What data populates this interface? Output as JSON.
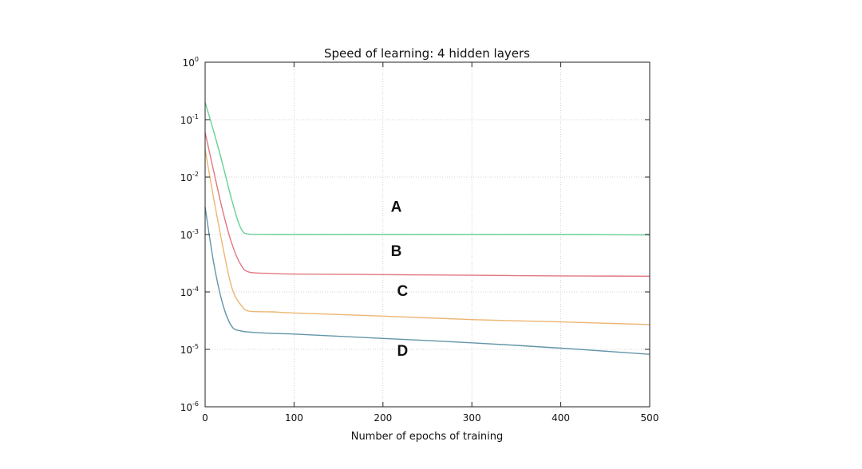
{
  "chart_data": {
    "type": "line",
    "title": "Speed of learning: 4 hidden layers",
    "xlabel": "Number of epochs of training",
    "ylabel": "",
    "xlim": [
      0,
      500
    ],
    "ylim": [
      1e-06,
      1
    ],
    "yscale": "log",
    "grid": true,
    "xticks": [
      "0",
      "100",
      "200",
      "300",
      "400",
      "500"
    ],
    "yticks": [
      {
        "base": "10",
        "exp": "0"
      },
      {
        "base": "10",
        "exp": "-1"
      },
      {
        "base": "10",
        "exp": "-2"
      },
      {
        "base": "10",
        "exp": "-3"
      },
      {
        "base": "10",
        "exp": "-4"
      },
      {
        "base": "10",
        "exp": "-5"
      },
      {
        "base": "10",
        "exp": "-6"
      }
    ],
    "series": [
      {
        "name": "A",
        "color": "#5fcf8f",
        "x": [
          0,
          10,
          20,
          30,
          40,
          50,
          75,
          100,
          200,
          300,
          400,
          500
        ],
        "y": [
          0.2,
          0.06,
          0.016,
          0.004,
          0.0013,
          0.00101,
          0.001,
          0.001,
          0.001,
          0.001,
          0.001,
          0.00098
        ]
      },
      {
        "name": "B",
        "color": "#e0707a",
        "x": [
          0,
          10,
          20,
          30,
          40,
          50,
          75,
          100,
          200,
          300,
          400,
          500
        ],
        "y": [
          0.06,
          0.012,
          0.0025,
          0.0007,
          0.0003,
          0.00022,
          0.00021,
          0.000205,
          0.0002,
          0.000195,
          0.00019,
          0.000188
        ]
      },
      {
        "name": "C",
        "color": "#ebb26a",
        "x": [
          0,
          10,
          20,
          30,
          40,
          50,
          75,
          100,
          200,
          300,
          400,
          500
        ],
        "y": [
          0.03,
          0.004,
          0.0006,
          0.00012,
          6e-05,
          4.6e-05,
          4.5e-05,
          4.3e-05,
          3.8e-05,
          3.3e-05,
          3e-05,
          2.7e-05
        ]
      },
      {
        "name": "D",
        "color": "#5a8fa3",
        "x": [
          0,
          10,
          20,
          30,
          40,
          50,
          75,
          100,
          200,
          300,
          400,
          500
        ],
        "y": [
          0.003,
          0.0003,
          6e-05,
          2.5e-05,
          2.1e-05,
          2e-05,
          1.9e-05,
          1.85e-05,
          1.55e-05,
          1.3e-05,
          1.05e-05,
          8.2e-06
        ]
      }
    ],
    "annotations": [
      {
        "text": "A",
        "x": 215,
        "y": 0.0025
      },
      {
        "text": "B",
        "x": 215,
        "y": 0.00042
      },
      {
        "text": "C",
        "x": 222,
        "y": 8.5e-05
      },
      {
        "text": "D",
        "x": 222,
        "y": 7.8e-06
      }
    ]
  }
}
